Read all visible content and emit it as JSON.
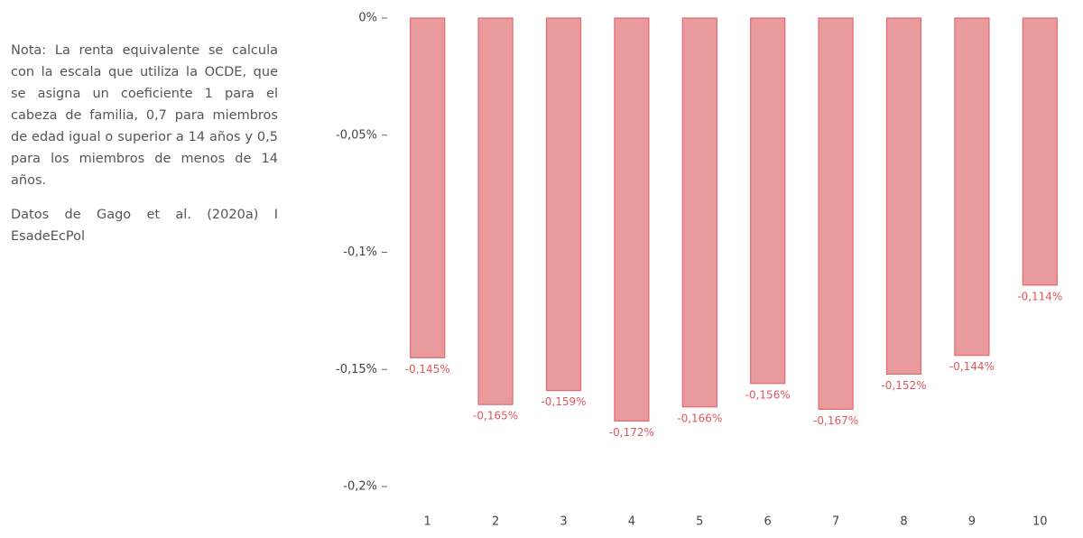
{
  "chart_data": {
    "type": "bar",
    "note": "Nota: La renta equivalente se calcula con la escala que utiliza la OCDE, que se asigna un coeficiente 1 para el cabeza de familia, 0,7 para miembros de edad igual o superior a 14 años y 0,5 para los miembros de menos de 14 años.",
    "source": "Datos de Gago et al. (2020a) I EsadeEcPol",
    "categories": [
      "1",
      "2",
      "3",
      "4",
      "5",
      "6",
      "7",
      "8",
      "9",
      "10"
    ],
    "values": [
      -0.145,
      -0.165,
      -0.159,
      -0.172,
      -0.166,
      -0.156,
      -0.167,
      -0.152,
      -0.144,
      -0.114
    ],
    "value_labels": [
      "-0,145%",
      "-0,165%",
      "-0,159%",
      "-0,172%",
      "-0,166%",
      "-0,156%",
      "-0,167%",
      "-0,152%",
      "-0,144%",
      "-0,114%"
    ],
    "color": "#e99a9d",
    "ylim": [
      -0.2,
      0
    ],
    "yticks": [
      {
        "value": 0,
        "label": "0%"
      },
      {
        "value": -0.05,
        "label": "-0,05%"
      },
      {
        "value": -0.1,
        "label": "-0,1%"
      },
      {
        "value": -0.15,
        "label": "-0,15%"
      },
      {
        "value": -0.2,
        "label": "-0,2%"
      }
    ]
  }
}
